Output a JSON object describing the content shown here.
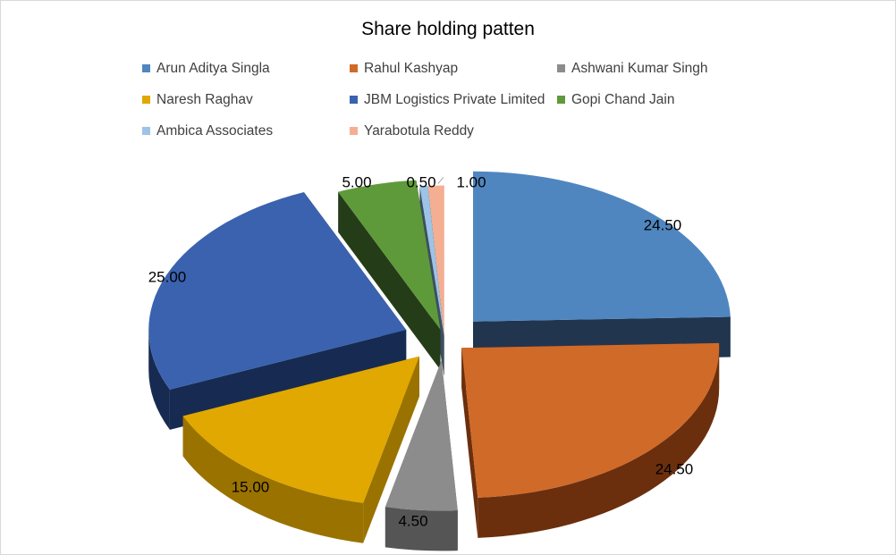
{
  "chart_data": {
    "type": "pie",
    "title": "Share holding patten",
    "legend_position": "top",
    "style": "3d-exploded",
    "slices": [
      {
        "label": "Arun Aditya Singla",
        "value": 24.5,
        "display": "24.50",
        "color": "#4F86C0",
        "shade": "#22354F"
      },
      {
        "label": "Rahul Kashyap",
        "value": 24.5,
        "display": "24.50",
        "color": "#D06A28",
        "shade": "#6B2F0E"
      },
      {
        "label": "Ashwani Kumar Singh",
        "value": 4.5,
        "display": "4.50",
        "color": "#8C8C8C",
        "shade": "#555555"
      },
      {
        "label": "Naresh Raghav",
        "value": 15.0,
        "display": "15.00",
        "color": "#E0A800",
        "shade": "#9A7200"
      },
      {
        "label": "JBM Logistics Private Limited",
        "value": 25.0,
        "display": "25.00",
        "color": "#3A62AE",
        "shade": "#172B52"
      },
      {
        "label": "Gopi Chand Jain",
        "value": 5.0,
        "display": "5.00",
        "color": "#5E9A3A",
        "shade": "#243D18"
      },
      {
        "label": "Ambica Associates",
        "value": 0.5,
        "display": "0.50",
        "color": "#9DC3E6",
        "shade": "#3C4F64"
      },
      {
        "label": "Yarabotula Reddy",
        "value": 1.0,
        "display": "1.00",
        "color": "#F4AE92",
        "shade": "#B07560"
      }
    ]
  }
}
